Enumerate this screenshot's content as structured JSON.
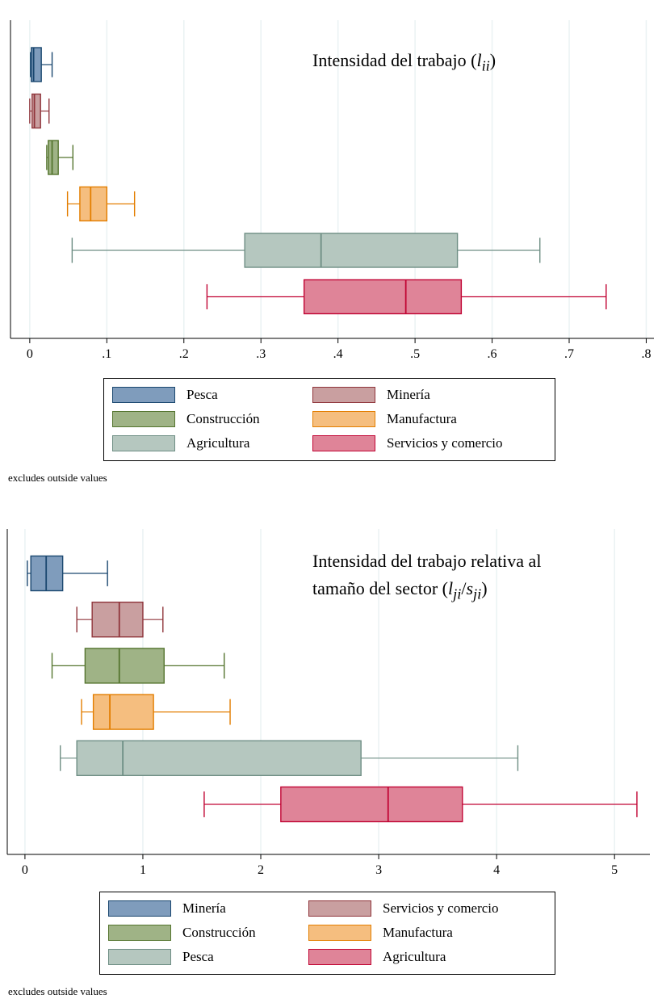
{
  "chart_data": [
    {
      "type": "boxplot",
      "title_text": "Intensidad del trabajo (",
      "title_var": "l",
      "title_sub": "ii",
      "title_close": ")",
      "orientation": "horizontal",
      "xlim": [
        -0.025,
        0.81
      ],
      "x_ticks": [
        0,
        0.1,
        0.2,
        0.3,
        0.4,
        0.5,
        0.6,
        0.7,
        0.8
      ],
      "x_tick_labels": [
        "0",
        ".1",
        ".2",
        ".3",
        ".4",
        ".5",
        ".6",
        ".7",
        ".8"
      ],
      "grid": true,
      "legend_position": "bottom",
      "note": "excludes outside values",
      "series": [
        {
          "name": "Pesca",
          "color": "#7f9cbc",
          "edge": "#1a476f",
          "whisker_low": 0.001,
          "q1": 0.002,
          "median": 0.005,
          "q3": 0.015,
          "whisker_high": 0.029
        },
        {
          "name": "Minería",
          "color": "#c99fa0",
          "edge": "#90353b",
          "whisker_low": 0.0,
          "q1": 0.003,
          "median": 0.006,
          "q3": 0.014,
          "whisker_high": 0.025
        },
        {
          "name": "Construcción",
          "color": "#9fb386",
          "edge": "#55752f",
          "whisker_low": 0.022,
          "q1": 0.024,
          "median": 0.029,
          "q3": 0.037,
          "whisker_high": 0.056
        },
        {
          "name": "Manufactura",
          "color": "#f5be7f",
          "edge": "#e37e00",
          "whisker_low": 0.049,
          "q1": 0.065,
          "median": 0.079,
          "q3": 0.1,
          "whisker_high": 0.136
        },
        {
          "name": "Agricultura",
          "color": "#b5c7bf",
          "edge": "#6e8e84",
          "whisker_low": 0.055,
          "q1": 0.279,
          "median": 0.378,
          "q3": 0.555,
          "whisker_high": 0.662
        },
        {
          "name": "Servicios y comercio",
          "color": "#df8498",
          "edge": "#c10534",
          "whisker_low": 0.23,
          "q1": 0.356,
          "median": 0.488,
          "q3": 0.56,
          "whisker_high": 0.748
        }
      ]
    },
    {
      "type": "boxplot",
      "title_line1": "Intensidad del trabajo relativa al",
      "title_line2_text": "tamaño del sector (",
      "title_var1": "l",
      "title_sub1": "ji",
      "title_slash": "/",
      "title_var2": "s",
      "title_sub2": "ji",
      "title_close": ")",
      "orientation": "horizontal",
      "xlim": [
        -0.15,
        5.3
      ],
      "x_ticks": [
        0,
        1,
        2,
        3,
        4,
        5
      ],
      "x_tick_labels": [
        "0",
        "1",
        "2",
        "3",
        "4",
        "5"
      ],
      "grid": true,
      "legend_position": "bottom",
      "note": "excludes outside values",
      "series": [
        {
          "name": "Minería",
          "color": "#7f9cbc",
          "edge": "#1a476f",
          "whisker_low": 0.02,
          "q1": 0.05,
          "median": 0.18,
          "q3": 0.32,
          "whisker_high": 0.7
        },
        {
          "name": "Servicios y comercio",
          "color": "#c99fa0",
          "edge": "#90353b",
          "whisker_low": 0.44,
          "q1": 0.57,
          "median": 0.8,
          "q3": 1.0,
          "whisker_high": 1.17
        },
        {
          "name": "Construcción",
          "color": "#9fb386",
          "edge": "#55752f",
          "whisker_low": 0.23,
          "q1": 0.51,
          "median": 0.8,
          "q3": 1.18,
          "whisker_high": 1.69
        },
        {
          "name": "Manufactura",
          "color": "#f5be7f",
          "edge": "#e37e00",
          "whisker_low": 0.48,
          "q1": 0.58,
          "median": 0.72,
          "q3": 1.09,
          "whisker_high": 1.74
        },
        {
          "name": "Pesca",
          "color": "#b5c7bf",
          "edge": "#6e8e84",
          "whisker_low": 0.3,
          "q1": 0.44,
          "median": 0.83,
          "q3": 2.85,
          "whisker_high": 4.18
        },
        {
          "name": "Agricultura",
          "color": "#df8498",
          "edge": "#c10534",
          "whisker_low": 1.52,
          "q1": 2.17,
          "median": 3.08,
          "q3": 3.71,
          "whisker_high": 5.19
        }
      ]
    }
  ]
}
